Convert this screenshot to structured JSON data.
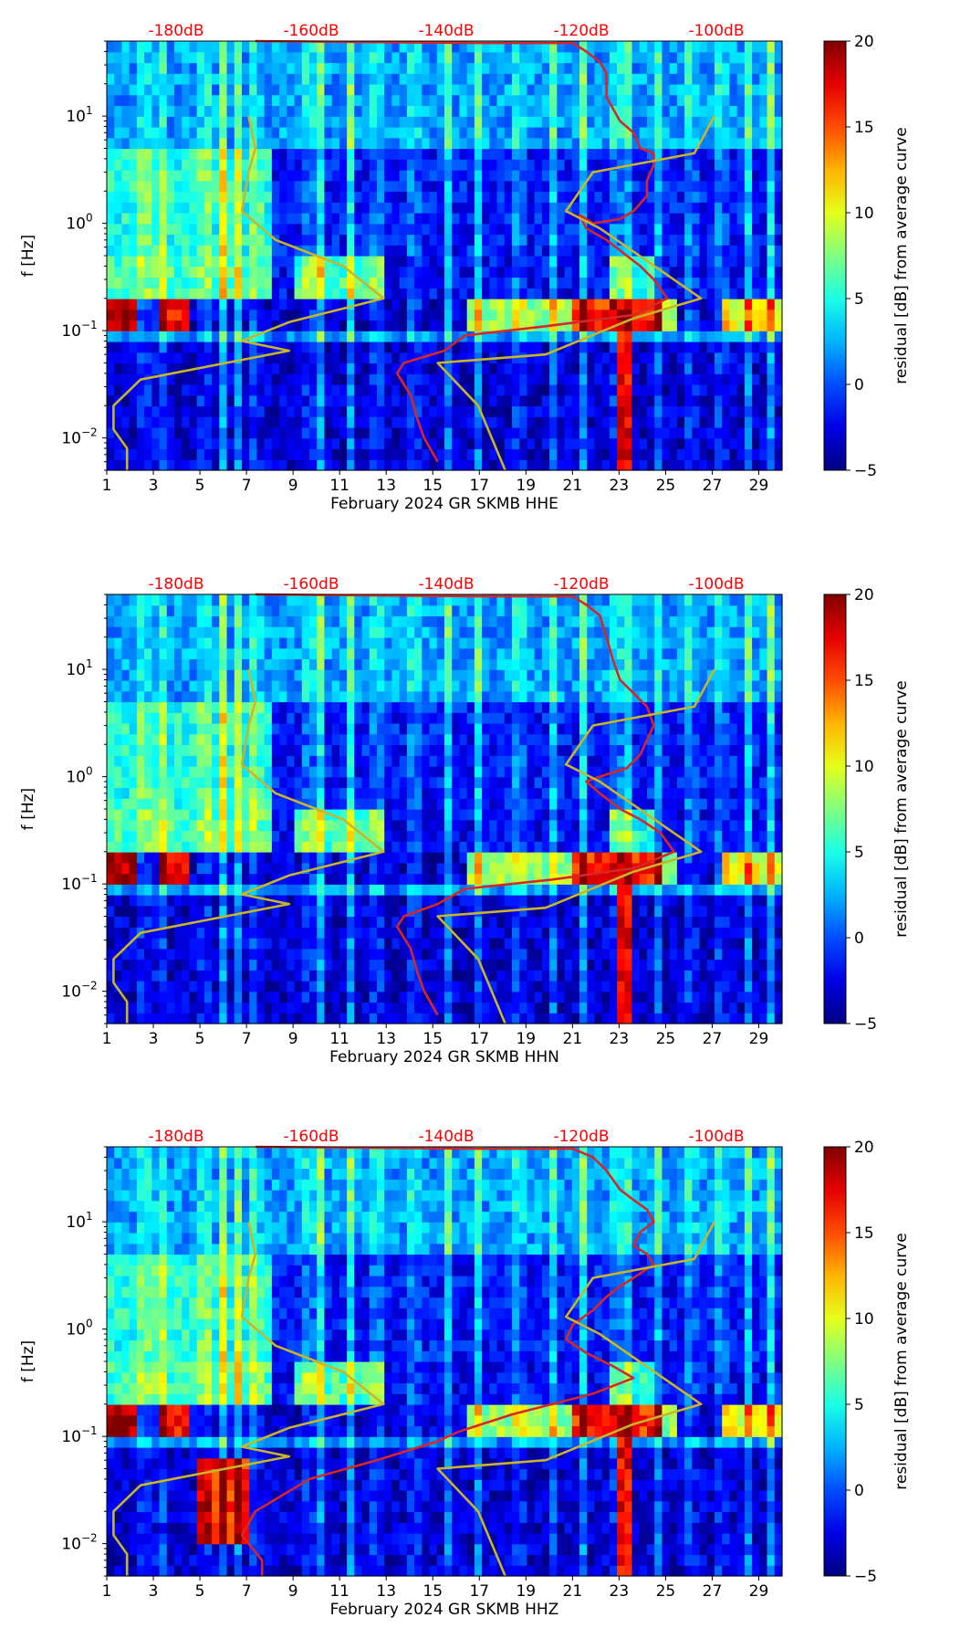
{
  "figure": {
    "colors": {
      "avg_curve": "#d62728",
      "model_curve": "#c8b52a",
      "top_axis_text": "#ff0000"
    },
    "colormap": "jet"
  },
  "chart_data": [
    {
      "type": "heatmap",
      "xlabel": "February 2024 GR SKMB  HHE",
      "ylabel": "f [Hz]",
      "x_ticks": [
        "1",
        "3",
        "5",
        "7",
        "9",
        "11",
        "13",
        "15",
        "17",
        "19",
        "21",
        "23",
        "25",
        "27",
        "29"
      ],
      "xlim": [
        1,
        30
      ],
      "y_scale": "log",
      "y_ticks": [
        "10^-2",
        "10^-1",
        "10^0",
        "10^1"
      ],
      "ylim": [
        0.005,
        50
      ],
      "top_ticks": [
        "-180dB",
        "-160dB",
        "-140dB",
        "-120dB",
        "-100dB"
      ],
      "colorbar": {
        "label": "residual [dB] from average curve",
        "ticks": [
          "−5",
          "0",
          "5",
          "10",
          "15",
          "20"
        ],
        "range": [
          -5,
          20
        ]
      },
      "series": [
        {
          "role": "average PSD curve (red)",
          "points": [
            [
              -168,
              50
            ],
            [
              -135,
              48
            ],
            [
              -121,
              48
            ],
            [
              -119,
              40
            ],
            [
              -117,
              32
            ],
            [
              -116,
              25
            ],
            [
              -116,
              15
            ],
            [
              -114,
              9
            ],
            [
              -112,
              7
            ],
            [
              -111,
              5
            ],
            [
              -109,
              4.5
            ],
            [
              -109,
              3.5
            ],
            [
              -110,
              2.5
            ],
            [
              -110,
              1.8
            ],
            [
              -112,
              1.3
            ],
            [
              -114,
              1.1
            ],
            [
              -118,
              1.0
            ],
            [
              -120,
              1.2
            ],
            [
              -119,
              0.9
            ],
            [
              -116,
              0.7
            ],
            [
              -113,
              0.5
            ],
            [
              -111,
              0.4
            ],
            [
              -109,
              0.3
            ],
            [
              -107,
              0.2
            ],
            [
              -112,
              0.14
            ],
            [
              -125,
              0.11
            ],
            [
              -137,
              0.09
            ],
            [
              -140,
              0.065
            ],
            [
              -146,
              0.05
            ],
            [
              -147,
              0.04
            ],
            [
              -145,
              0.025
            ],
            [
              -144,
              0.015
            ],
            [
              -143,
              0.01
            ],
            [
              -141,
              0.006
            ]
          ]
        },
        {
          "role": "reference noise model (yellow)",
          "points": [
            [
              -169,
              10
            ],
            [
              -168,
              5
            ],
            [
              -169,
              3
            ],
            [
              -170,
              1.3
            ],
            [
              -165,
              0.7
            ],
            [
              -155,
              0.4
            ],
            [
              -149,
              0.2
            ],
            [
              -163,
              0.12
            ],
            [
              -170,
              0.08
            ],
            [
              -163,
              0.065
            ],
            [
              -185,
              0.035
            ],
            [
              -189,
              0.02
            ],
            [
              -189,
              0.012
            ],
            [
              -187,
              0.008
            ],
            [
              -187,
              0.005
            ]
          ]
        },
        {
          "role": "reference noise model right branch (yellow)",
          "points": [
            [
              -100,
              10
            ],
            [
              -103,
              4.5
            ],
            [
              -118,
              3
            ],
            [
              -122,
              1.3
            ],
            [
              -117,
              0.9
            ],
            [
              -102,
              0.2
            ],
            [
              -112,
              0.13
            ],
            [
              -125,
              0.06
            ],
            [
              -141,
              0.05
            ],
            [
              -135,
              0.02
            ],
            [
              -131,
              0.005
            ]
          ]
        }
      ]
    },
    {
      "type": "heatmap",
      "xlabel": "February 2024 GR SKMB  HHN",
      "ylabel": "f [Hz]",
      "x_ticks": [
        "1",
        "3",
        "5",
        "7",
        "9",
        "11",
        "13",
        "15",
        "17",
        "19",
        "21",
        "23",
        "25",
        "27",
        "29"
      ],
      "xlim": [
        1,
        30
      ],
      "y_scale": "log",
      "y_ticks": [
        "10^-2",
        "10^-1",
        "10^0",
        "10^1"
      ],
      "ylim": [
        0.005,
        50
      ],
      "top_ticks": [
        "-180dB",
        "-160dB",
        "-140dB",
        "-120dB",
        "-100dB"
      ],
      "colorbar": {
        "label": "residual [dB] from average curve",
        "ticks": [
          "−5",
          "0",
          "5",
          "10",
          "15",
          "20"
        ],
        "range": [
          -5,
          20
        ]
      },
      "series": [
        {
          "role": "average PSD curve (red)",
          "points": [
            [
              -168,
              50
            ],
            [
              -135,
              48
            ],
            [
              -121,
              48
            ],
            [
              -119,
              40
            ],
            [
              -117,
              32
            ],
            [
              -116,
              20
            ],
            [
              -115,
              12
            ],
            [
              -114,
              8
            ],
            [
              -112,
              6
            ],
            [
              -110,
              4.5
            ],
            [
              -109,
              3
            ],
            [
              -110,
              2.2
            ],
            [
              -111,
              1.6
            ],
            [
              -113,
              1.2
            ],
            [
              -117,
              1.0
            ],
            [
              -119,
              0.9
            ],
            [
              -117,
              0.7
            ],
            [
              -114,
              0.5
            ],
            [
              -111,
              0.4
            ],
            [
              -108,
              0.3
            ],
            [
              -106,
              0.2
            ],
            [
              -112,
              0.14
            ],
            [
              -124,
              0.11
            ],
            [
              -137,
              0.09
            ],
            [
              -141,
              0.065
            ],
            [
              -146,
              0.05
            ],
            [
              -147,
              0.04
            ],
            [
              -145,
              0.025
            ],
            [
              -144,
              0.015
            ],
            [
              -143,
              0.01
            ],
            [
              -141,
              0.006
            ]
          ]
        },
        {
          "role": "reference noise model (yellow)",
          "points": [
            [
              -169,
              10
            ],
            [
              -168,
              5
            ],
            [
              -169,
              3
            ],
            [
              -170,
              1.3
            ],
            [
              -165,
              0.7
            ],
            [
              -155,
              0.4
            ],
            [
              -149,
              0.2
            ],
            [
              -163,
              0.12
            ],
            [
              -170,
              0.08
            ],
            [
              -163,
              0.065
            ],
            [
              -185,
              0.035
            ],
            [
              -189,
              0.02
            ],
            [
              -189,
              0.012
            ],
            [
              -187,
              0.008
            ],
            [
              -187,
              0.005
            ]
          ]
        },
        {
          "role": "reference noise model right branch (yellow)",
          "points": [
            [
              -100,
              10
            ],
            [
              -103,
              4.5
            ],
            [
              -118,
              3
            ],
            [
              -122,
              1.3
            ],
            [
              -117,
              0.9
            ],
            [
              -102,
              0.2
            ],
            [
              -112,
              0.13
            ],
            [
              -125,
              0.06
            ],
            [
              -141,
              0.05
            ],
            [
              -135,
              0.02
            ],
            [
              -131,
              0.005
            ]
          ]
        }
      ]
    },
    {
      "type": "heatmap",
      "xlabel": "February 2024 GR SKMB  HHZ",
      "ylabel": "f [Hz]",
      "x_ticks": [
        "1",
        "3",
        "5",
        "7",
        "9",
        "11",
        "13",
        "15",
        "17",
        "19",
        "21",
        "23",
        "25",
        "27",
        "29"
      ],
      "xlim": [
        1,
        30
      ],
      "y_scale": "log",
      "y_ticks": [
        "10^-2",
        "10^-1",
        "10^0",
        "10^1"
      ],
      "ylim": [
        0.005,
        50
      ],
      "top_ticks": [
        "-180dB",
        "-160dB",
        "-140dB",
        "-120dB",
        "-100dB"
      ],
      "colorbar": {
        "label": "residual [dB] from average curve",
        "ticks": [
          "−5",
          "0",
          "5",
          "10",
          "15",
          "20"
        ],
        "range": [
          -5,
          20
        ]
      },
      "series": [
        {
          "role": "average PSD curve (red)",
          "points": [
            [
              -168,
              50
            ],
            [
              -135,
              48
            ],
            [
              -121,
              48
            ],
            [
              -118,
              40
            ],
            [
              -116,
              30
            ],
            [
              -114,
              20
            ],
            [
              -112,
              16
            ],
            [
              -110,
              13
            ],
            [
              -109,
              10
            ],
            [
              -111,
              8
            ],
            [
              -112,
              6
            ],
            [
              -110,
              5
            ],
            [
              -109,
              4
            ],
            [
              -112,
              3
            ],
            [
              -114,
              2.5
            ],
            [
              -116,
              2
            ],
            [
              -118,
              1.5
            ],
            [
              -121,
              1.1
            ],
            [
              -122,
              0.8
            ],
            [
              -119,
              0.6
            ],
            [
              -115,
              0.45
            ],
            [
              -112,
              0.35
            ],
            [
              -118,
              0.25
            ],
            [
              -130,
              0.16
            ],
            [
              -138,
              0.11
            ],
            [
              -141,
              0.09
            ],
            [
              -150,
              0.06
            ],
            [
              -160,
              0.04
            ],
            [
              -168,
              0.02
            ],
            [
              -170,
              0.012
            ],
            [
              -169,
              0.01
            ],
            [
              -167,
              0.007
            ],
            [
              -167,
              0.005
            ]
          ]
        },
        {
          "role": "reference noise model (yellow)",
          "points": [
            [
              -169,
              10
            ],
            [
              -168,
              5
            ],
            [
              -169,
              3
            ],
            [
              -170,
              1.3
            ],
            [
              -165,
              0.7
            ],
            [
              -155,
              0.4
            ],
            [
              -149,
              0.2
            ],
            [
              -163,
              0.12
            ],
            [
              -170,
              0.08
            ],
            [
              -163,
              0.065
            ],
            [
              -185,
              0.035
            ],
            [
              -189,
              0.02
            ],
            [
              -189,
              0.012
            ],
            [
              -187,
              0.008
            ],
            [
              -187,
              0.005
            ]
          ]
        },
        {
          "role": "reference noise model right branch (yellow)",
          "points": [
            [
              -100,
              10
            ],
            [
              -103,
              4.5
            ],
            [
              -118,
              3
            ],
            [
              -122,
              1.3
            ],
            [
              -117,
              0.9
            ],
            [
              -102,
              0.2
            ],
            [
              -112,
              0.13
            ],
            [
              -125,
              0.06
            ],
            [
              -141,
              0.05
            ],
            [
              -135,
              0.02
            ],
            [
              -131,
              0.005
            ]
          ]
        }
      ]
    }
  ]
}
